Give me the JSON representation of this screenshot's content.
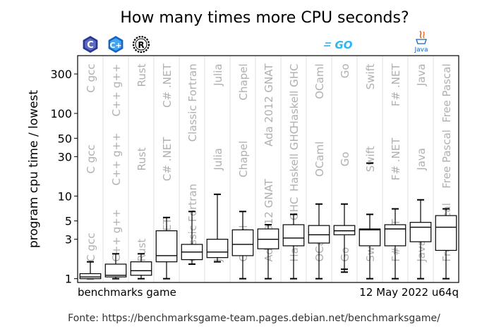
{
  "chart_data": {
    "type": "box",
    "title": "How many times more CPU seconds?",
    "ylabel": "program cpu time / lowest",
    "yscale": "log",
    "ylim": [
      0.9,
      500
    ],
    "yticks": [
      1,
      3,
      5,
      10,
      30,
      50,
      100,
      300
    ],
    "footer_left": "benchmarks game",
    "footer_right": "12 May 2022 u64q",
    "source": "Fonte: https://benchmarksgame-team.pages.debian.net/benchmarksgame/",
    "logos": [
      "C",
      "C+",
      "R",
      "GO",
      "Java"
    ],
    "categories": [
      {
        "top": "C gcc",
        "mid": "C gcc",
        "low": "C gcc"
      },
      {
        "top": "C++ g++",
        "mid": "C++ g++",
        "low": "C++ g++"
      },
      {
        "top": "Rust",
        "mid": "Rust",
        "low": "Rust"
      },
      {
        "top": "C# .NET",
        "mid": "C# .NET",
        "low": "C# .NET"
      },
      {
        "top": "Classic Fortran",
        "mid": "",
        "low": "Classic Fortran"
      },
      {
        "top": "Julia",
        "mid": "Julia",
        "low": "Julia"
      },
      {
        "top": "Chapel",
        "mid": "Chapel",
        "low": "Chapel"
      },
      {
        "top": "Ada 2012 GNAT",
        "mid": "",
        "low": "Ada 2012 GNAT"
      },
      {
        "top": "Haskell GHC",
        "mid": "Haskell GHC",
        "low": "Haskell GHC"
      },
      {
        "top": "OCaml",
        "mid": "OCaml",
        "low": "OCaml"
      },
      {
        "top": "Go",
        "mid": "Go",
        "low": "Go"
      },
      {
        "top": "Swift",
        "mid": "Swift",
        "low": "Swift"
      },
      {
        "top": "F# .NET",
        "mid": "F# .NET",
        "low": "F# .NET"
      },
      {
        "top": "Java",
        "mid": "Java",
        "low": "Java"
      },
      {
        "top": "Free Pascal",
        "mid": "Free Pascal",
        "low": "Free Pascal"
      }
    ],
    "boxes": [
      {
        "min": 1.0,
        "q1": 1.0,
        "median": 1.05,
        "q3": 1.15,
        "max": 1.6,
        "outliers": []
      },
      {
        "min": 1.0,
        "q1": 1.05,
        "median": 1.1,
        "q3": 1.5,
        "max": 2.0,
        "outliers": []
      },
      {
        "min": 1.0,
        "q1": 1.1,
        "median": 1.25,
        "q3": 1.6,
        "max": 2.0,
        "outliers": []
      },
      {
        "min": 1.0,
        "q1": 1.6,
        "median": 1.9,
        "q3": 3.8,
        "max": 5.5,
        "outliers": []
      },
      {
        "min": 1.5,
        "q1": 1.7,
        "median": 2.1,
        "q3": 2.6,
        "max": 6.5,
        "outliers": []
      },
      {
        "min": 1.6,
        "q1": 1.8,
        "median": 2.1,
        "q3": 3.0,
        "max": 10.5,
        "outliers": []
      },
      {
        "min": 1.0,
        "q1": 1.9,
        "median": 2.6,
        "q3": 3.9,
        "max": 6.5,
        "outliers": []
      },
      {
        "min": 1.0,
        "q1": 2.3,
        "median": 3.0,
        "q3": 4.0,
        "max": 4.5,
        "outliers": []
      },
      {
        "min": 1.0,
        "q1": 2.5,
        "median": 3.1,
        "q3": 4.5,
        "max": 6.0,
        "outliers": []
      },
      {
        "min": 1.0,
        "q1": 2.7,
        "median": 3.4,
        "q3": 4.4,
        "max": 8.0,
        "outliers": []
      },
      {
        "min": 1.2,
        "q1": 3.4,
        "median": 3.8,
        "q3": 4.4,
        "max": 8.0,
        "outliers": [
          1.3
        ]
      },
      {
        "min": 1.0,
        "q1": 2.5,
        "median": 3.9,
        "q3": 4.0,
        "max": 6.0,
        "outliers": [
          25
        ]
      },
      {
        "min": 1.0,
        "q1": 2.5,
        "median": 4.0,
        "q3": 4.5,
        "max": 7.0,
        "outliers": []
      },
      {
        "min": 1.0,
        "q1": 2.8,
        "median": 4.2,
        "q3": 4.8,
        "max": 9.0,
        "outliers": []
      },
      {
        "min": 1.0,
        "q1": 2.2,
        "median": 4.2,
        "q3": 5.8,
        "max": 7.0,
        "outliers": []
      }
    ]
  }
}
